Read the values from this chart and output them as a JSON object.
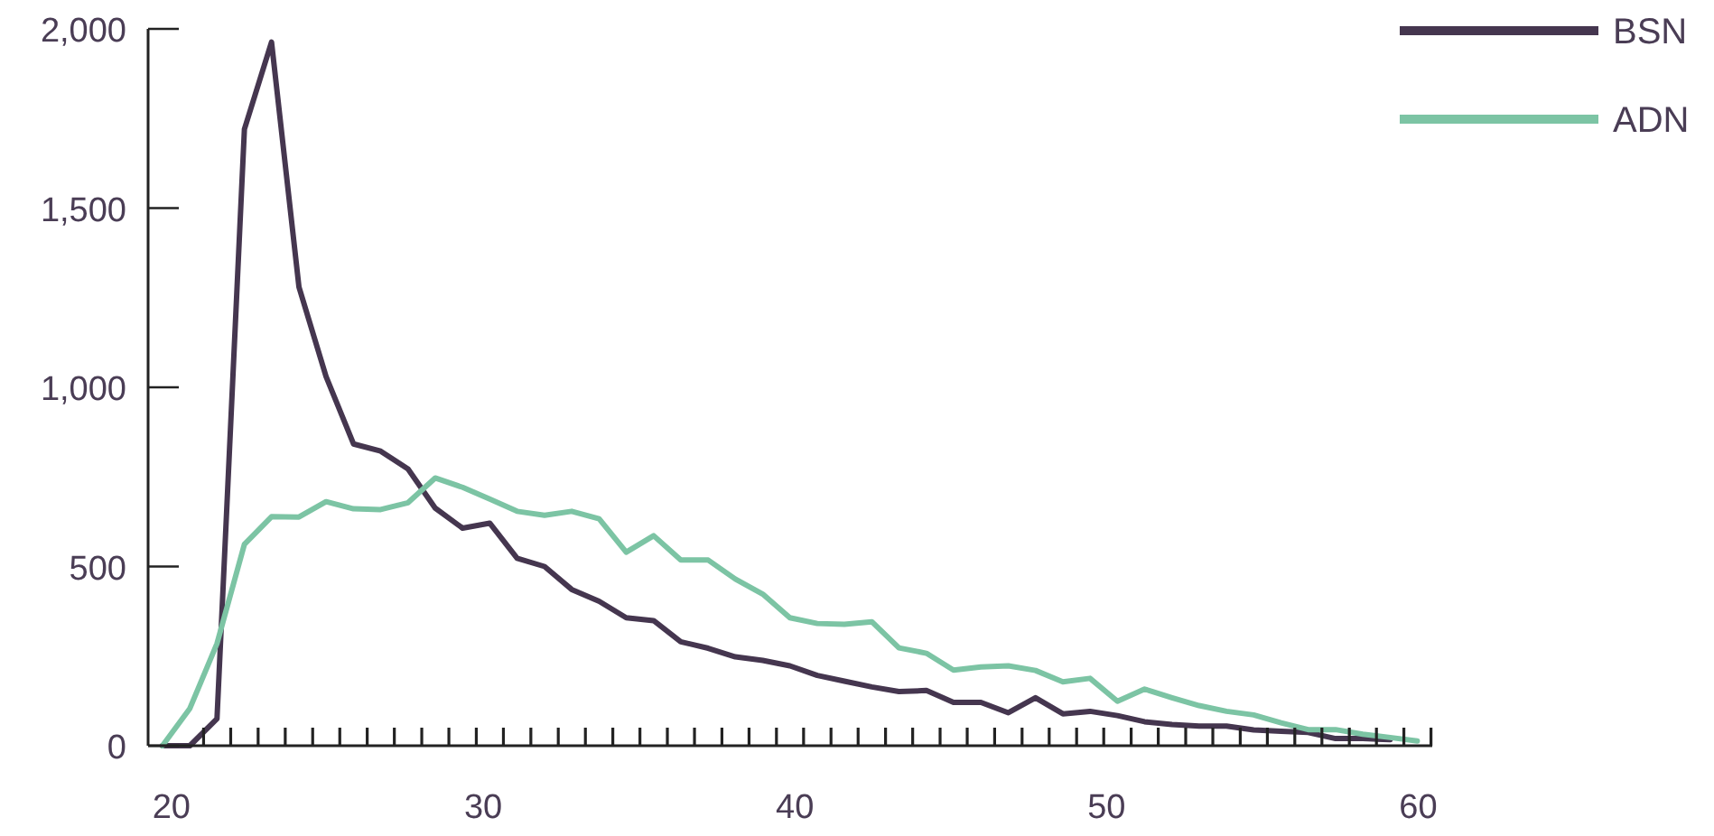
{
  "chart_data": {
    "type": "line",
    "x": [
      19.71,
      20.59,
      21.46,
      22.34,
      23.21,
      24.09,
      24.96,
      25.84,
      26.71,
      27.59,
      28.46,
      29.34,
      30.21,
      31.09,
      31.97,
      32.84,
      33.72,
      34.59,
      35.47,
      36.34,
      37.22,
      38.09,
      38.97,
      39.84,
      40.72,
      41.59,
      42.47,
      43.34,
      44.22,
      45.09,
      45.97,
      46.85,
      47.72,
      48.6,
      49.47,
      50.35,
      51.22,
      52.1,
      52.97,
      53.85,
      54.72,
      55.6,
      56.47,
      57.35,
      58.22,
      59.1,
      59.97
    ],
    "series": [
      {
        "name": "BSN",
        "color": "#45364f",
        "values": [
          0,
          0,
          75,
          1720,
          1963,
          1280,
          1030,
          842,
          822,
          772,
          663,
          607,
          621,
          523,
          500,
          436,
          403,
          357,
          349,
          290,
          272,
          248,
          238,
          223,
          196,
          180,
          164,
          151,
          154,
          121,
          121,
          92,
          134,
          89,
          96,
          84,
          67,
          59,
          55,
          55,
          44,
          40,
          37,
          20,
          20,
          17,
          null
        ]
      },
      {
        "name": "ADN",
        "color": "#7cc4a4",
        "values": [
          0,
          104,
          285,
          562,
          639,
          638,
          681,
          661,
          659,
          678,
          747,
          721,
          688,
          654,
          643,
          654,
          633,
          540,
          586,
          518,
          518,
          465,
          423,
          357,
          341,
          339,
          346,
          273,
          258,
          211,
          220,
          223,
          210,
          178,
          188,
          124,
          158,
          134,
          112,
          96,
          86,
          64,
          45,
          45,
          32,
          23,
          13
        ]
      }
    ],
    "xlim": [
      19.25,
      60.45
    ],
    "xticks": [
      20,
      30,
      40,
      50,
      60,
      {
        "value": 21.03,
        "label": null
      },
      {
        "value": 21.9,
        "label": null
      },
      {
        "value": 22.78,
        "label": null
      },
      {
        "value": 23.65,
        "label": null
      },
      {
        "value": 24.53,
        "label": null
      },
      {
        "value": 25.4,
        "label": null
      },
      {
        "value": 26.28,
        "label": null
      },
      {
        "value": 27.15,
        "label": null
      },
      {
        "value": 28.03,
        "label": null
      },
      {
        "value": 28.9,
        "label": null
      },
      {
        "value": 29.78,
        "label": null
      },
      {
        "value": 30.65,
        "label": null
      },
      {
        "value": 31.53,
        "label": null
      },
      {
        "value": 32.41,
        "label": null
      },
      {
        "value": 33.28,
        "label": null
      },
      {
        "value": 34.16,
        "label": null
      },
      {
        "value": 35.03,
        "label": null
      },
      {
        "value": 35.91,
        "label": null
      },
      {
        "value": 36.78,
        "label": null
      },
      {
        "value": 37.66,
        "label": null
      },
      {
        "value": 38.53,
        "label": null
      },
      {
        "value": 39.41,
        "label": null
      },
      {
        "value": 40.28,
        "label": null
      },
      {
        "value": 41.16,
        "label": null
      },
      {
        "value": 42.03,
        "label": null
      },
      {
        "value": 42.91,
        "label": null
      },
      {
        "value": 43.78,
        "label": null
      },
      {
        "value": 44.66,
        "label": null
      },
      {
        "value": 45.53,
        "label": null
      },
      {
        "value": 46.41,
        "label": null
      },
      {
        "value": 47.29,
        "label": null
      },
      {
        "value": 48.16,
        "label": null
      },
      {
        "value": 49.04,
        "label": null
      },
      {
        "value": 49.91,
        "label": null
      },
      {
        "value": 50.79,
        "label": null
      },
      {
        "value": 51.66,
        "label": null
      },
      {
        "value": 52.54,
        "label": null
      },
      {
        "value": 53.41,
        "label": null
      },
      {
        "value": 54.29,
        "label": null
      },
      {
        "value": 55.16,
        "label": null
      },
      {
        "value": 56.04,
        "label": null
      },
      {
        "value": 56.91,
        "label": null
      },
      {
        "value": 57.79,
        "label": null
      },
      {
        "value": 58.66,
        "label": null
      },
      {
        "value": 59.54,
        "label": null
      },
      {
        "value": 60.41,
        "label": null
      }
    ],
    "ylim": [
      0,
      2000
    ],
    "yticks": [
      0,
      {
        "value": 500,
        "label": "500"
      },
      {
        "value": 1000,
        "label": "1,000"
      },
      {
        "value": 1500,
        "label": "1,500"
      },
      {
        "value": 2000,
        "label": "2,000"
      }
    ],
    "legend": "top right",
    "marker": "none",
    "line_style": "solid",
    "grid": false
  }
}
